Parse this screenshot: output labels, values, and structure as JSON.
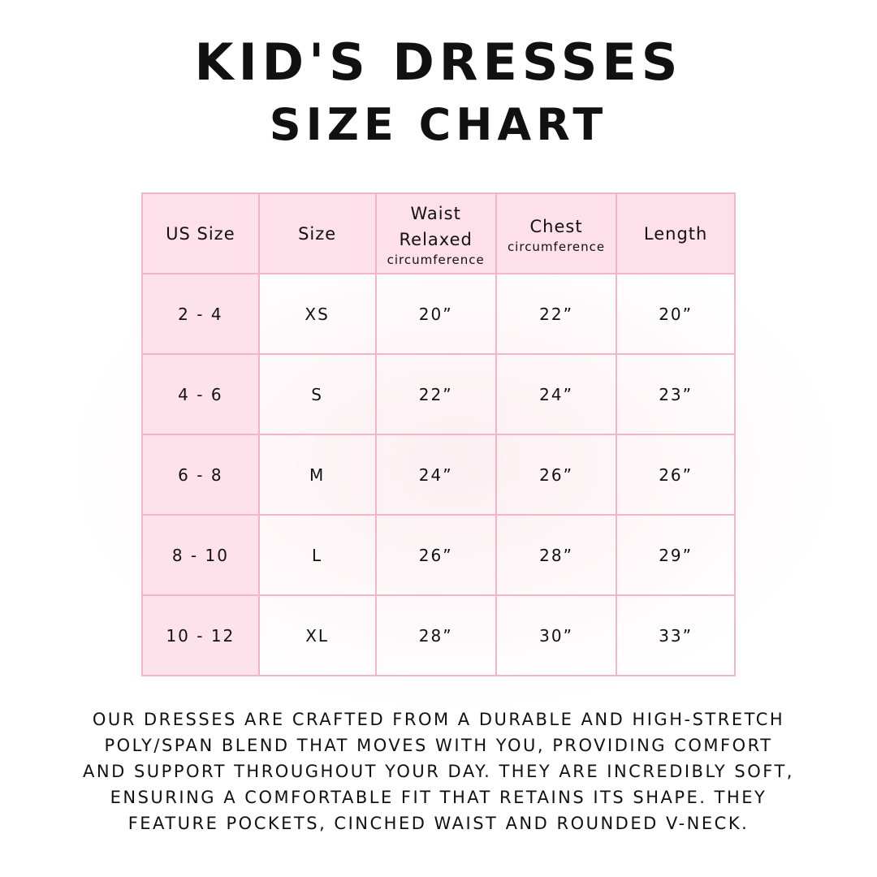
{
  "title": {
    "line1": "Kid's Dresses",
    "line2": "Size Chart"
  },
  "table": {
    "headers": [
      {
        "main": "US Size",
        "sub": ""
      },
      {
        "main": "Size",
        "sub": ""
      },
      {
        "main": "Waist Relaxed",
        "sub": "circumference"
      },
      {
        "main": "Chest",
        "sub": "circumference"
      },
      {
        "main": "Length",
        "sub": ""
      }
    ],
    "rows": [
      [
        "2 - 4",
        "XS",
        "20”",
        "22”",
        "20”"
      ],
      [
        "4 - 6",
        "S",
        "22”",
        "24”",
        "23”"
      ],
      [
        "6 - 8",
        "M",
        "24”",
        "26”",
        "26”"
      ],
      [
        "8 - 10",
        "L",
        "26”",
        "28”",
        "29”"
      ],
      [
        "10 - 12",
        "XL",
        "28”",
        "30”",
        "33”"
      ]
    ]
  },
  "description": [
    "Our dresses are crafted from a durable and high-stretch",
    "poly/span blend that moves with you, providing comfort",
    "and support throughout your day. They are incredibly soft,",
    "ensuring a comfortable fit that retains its shape. They",
    "feature pockets, cinched waist and rounded V-neck."
  ],
  "colors": {
    "table_border": "#f4b5c9",
    "header_fill": "#fddee9"
  }
}
